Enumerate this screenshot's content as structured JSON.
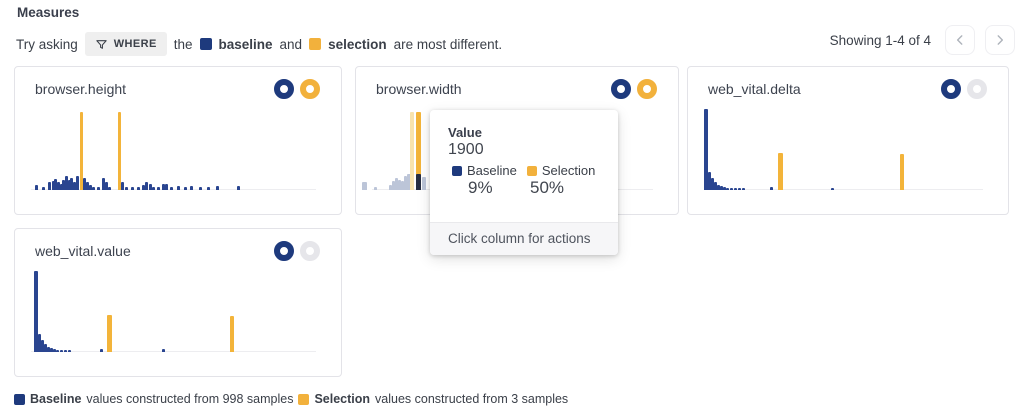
{
  "colors": {
    "navy": "#1e3a7d",
    "yellow": "#f2b13c",
    "bar_navy": "#2a4590",
    "bar_yellow": "#f3b43a",
    "bar_faded_blue": "#bcc5d8",
    "bar_faded_yellow": "#f8e3ae",
    "bar_hover_dark": "#272e42",
    "toggle_off": "#e6e6ea"
  },
  "header": {
    "title": "Measures"
  },
  "prompt": {
    "prefix": "Try asking",
    "chip_label": "WHERE",
    "mid": "the",
    "baseline_label": "baseline",
    "and": "and",
    "selection_label": "selection",
    "suffix": "are most different."
  },
  "pagination": {
    "status": "Showing 1-4 of 4"
  },
  "cards": [
    {
      "title": "browser.height",
      "selection_toggle": "on",
      "bars": [
        [
          20,
          5,
          "b"
        ],
        [
          27,
          3,
          "b"
        ],
        [
          33,
          8,
          "b"
        ],
        [
          37,
          9,
          "b"
        ],
        [
          39,
          11,
          "b"
        ],
        [
          42,
          8,
          "b"
        ],
        [
          45,
          6,
          "b"
        ],
        [
          47,
          10,
          "b"
        ],
        [
          50,
          14,
          "b"
        ],
        [
          53,
          10,
          "b"
        ],
        [
          55,
          12,
          "b"
        ],
        [
          58,
          8,
          "b"
        ],
        [
          61,
          14,
          "b"
        ],
        [
          65,
          78,
          "y"
        ],
        [
          68,
          12,
          "b"
        ],
        [
          71,
          8,
          "b"
        ],
        [
          74,
          5,
          "b"
        ],
        [
          77,
          3,
          "b"
        ],
        [
          82,
          3,
          "b"
        ],
        [
          87,
          12,
          "b"
        ],
        [
          90,
          8,
          "b"
        ],
        [
          93,
          3,
          "b"
        ],
        [
          103,
          78,
          "y"
        ],
        [
          106,
          8,
          "b"
        ],
        [
          110,
          3,
          "b"
        ],
        [
          116,
          3,
          "b"
        ],
        [
          122,
          3,
          "b"
        ],
        [
          127,
          5,
          "b"
        ],
        [
          130,
          8,
          "b"
        ],
        [
          134,
          6,
          "b"
        ],
        [
          137,
          3,
          "b"
        ],
        [
          142,
          3,
          "b"
        ],
        [
          147,
          6,
          "b"
        ],
        [
          150,
          6,
          "b"
        ],
        [
          155,
          3,
          "b"
        ],
        [
          162,
          4,
          "b"
        ],
        [
          169,
          3,
          "b"
        ],
        [
          175,
          4,
          "b"
        ],
        [
          184,
          3,
          "b"
        ],
        [
          192,
          3,
          "b"
        ],
        [
          201,
          4,
          "b"
        ],
        [
          222,
          4,
          "b"
        ]
      ]
    },
    {
      "title": "browser.width",
      "selection_toggle": "on",
      "bars": [
        [
          6,
          8,
          "fb",
          5
        ],
        [
          18,
          3,
          "fb"
        ],
        [
          33,
          5,
          "fb"
        ],
        [
          36,
          9,
          "fb"
        ],
        [
          39,
          12,
          "fb"
        ],
        [
          42,
          10,
          "fb"
        ],
        [
          45,
          9,
          "fb"
        ],
        [
          48,
          14,
          "fb"
        ],
        [
          51,
          16,
          "fb",
          4
        ],
        [
          54,
          78,
          "fy",
          4
        ],
        [
          60,
          78,
          "y",
          5
        ],
        [
          60,
          16,
          "hb",
          5
        ],
        [
          66,
          13,
          "fb",
          4
        ]
      ]
    },
    {
      "title": "web_vital.delta",
      "selection_toggle": "off",
      "bars": [
        [
          16,
          81,
          "b",
          4
        ],
        [
          20,
          18,
          "b"
        ],
        [
          23,
          12,
          "b"
        ],
        [
          26,
          8,
          "b"
        ],
        [
          29,
          5,
          "b"
        ],
        [
          32,
          4,
          "b"
        ],
        [
          35,
          3,
          "b"
        ],
        [
          38,
          2,
          "b"
        ],
        [
          42,
          2,
          "b"
        ],
        [
          46,
          2,
          "b"
        ],
        [
          50,
          2,
          "b"
        ],
        [
          54,
          2,
          "b"
        ],
        [
          82,
          3,
          "b"
        ],
        [
          90,
          37,
          "y",
          5
        ],
        [
          143,
          2,
          "b"
        ],
        [
          212,
          36,
          "y",
          4
        ]
      ]
    },
    {
      "title": "web_vital.value",
      "selection_toggle": "off",
      "bars": [
        [
          19,
          81,
          "b",
          4
        ],
        [
          23,
          18,
          "b"
        ],
        [
          26,
          12,
          "b"
        ],
        [
          29,
          8,
          "b"
        ],
        [
          32,
          5,
          "b"
        ],
        [
          35,
          4,
          "b"
        ],
        [
          38,
          3,
          "b"
        ],
        [
          41,
          2,
          "b"
        ],
        [
          45,
          2,
          "b"
        ],
        [
          49,
          2,
          "b"
        ],
        [
          53,
          2,
          "b"
        ],
        [
          85,
          3,
          "b"
        ],
        [
          92,
          37,
          "y",
          5
        ],
        [
          147,
          3,
          "b"
        ],
        [
          215,
          36,
          "y",
          4
        ]
      ]
    }
  ],
  "tooltip": {
    "value_label": "Value",
    "value": "1900",
    "baseline_label": "Baseline",
    "selection_label": "Selection",
    "baseline_pct": "9%",
    "selection_pct": "50%",
    "footer": "Click column for actions"
  },
  "footer_legend": {
    "baseline_label": "Baseline",
    "baseline_text": "values constructed from 998 samples",
    "selection_label": "Selection",
    "selection_text": "values constructed from 3 samples"
  }
}
